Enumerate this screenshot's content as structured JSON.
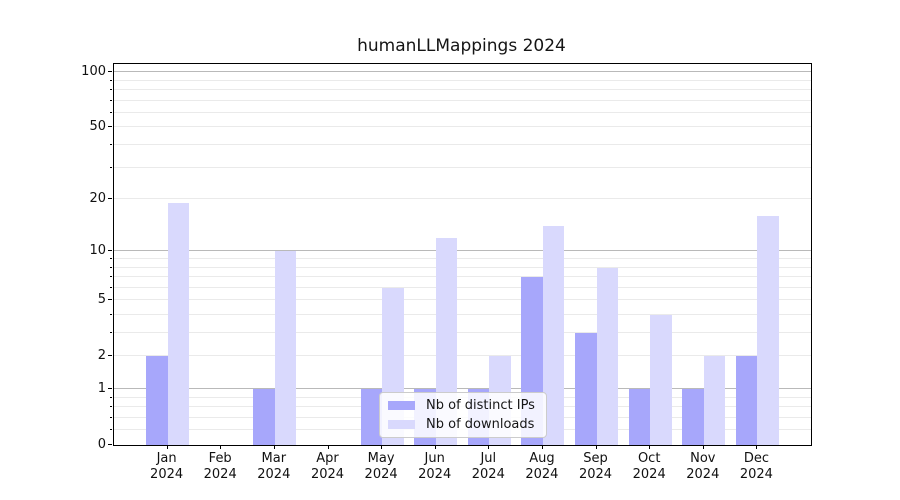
{
  "title": "humanLLMappings 2024",
  "chart_data": {
    "type": "bar",
    "title": "humanLLMappings 2024",
    "categories": [
      "Jan",
      "Feb",
      "Mar",
      "Apr",
      "May",
      "Jun",
      "Jul",
      "Aug",
      "Sep",
      "Oct",
      "Nov",
      "Dec"
    ],
    "year_suffix": "2024",
    "series": [
      {
        "name": "Nb of distinct IPs",
        "color": "#a7a7fb",
        "values": [
          2,
          0,
          1,
          0,
          1,
          1,
          1,
          7,
          3,
          1,
          1,
          2
        ]
      },
      {
        "name": "Nb of downloads",
        "color": "#d9d9fd",
        "values": [
          19,
          0,
          10,
          0,
          6,
          12,
          2,
          14,
          8,
          4,
          2,
          16
        ]
      }
    ],
    "yscale": "log1p",
    "y_ticks": [
      0,
      1,
      2,
      5,
      10,
      20,
      50,
      100
    ],
    "ylim": [
      0,
      110
    ],
    "xlabel": "",
    "ylabel": "",
    "grid": "both",
    "legend_position": "lower-center inside"
  },
  "colors": {
    "major_grid": "#b9b9b9",
    "minor_grid": "#eaeaea",
    "axis": "#000000",
    "text": "#151515"
  }
}
